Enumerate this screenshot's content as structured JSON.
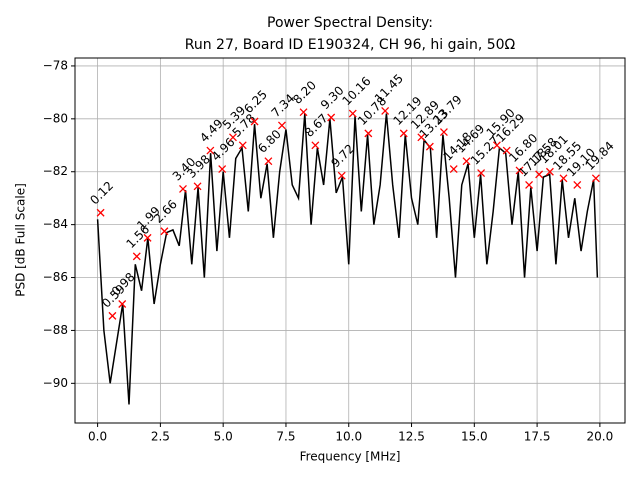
{
  "chart_data": {
    "type": "line",
    "title": "Power Spectral Density:",
    "subtitle": "Run 27, Board ID E190324, CH 96, hi gain, 50Ω",
    "x_label": "Frequency [MHz]",
    "y_label": "PSD [dB Full Scale]",
    "xlim": [
      -0.9,
      21.0
    ],
    "ylim": [
      -91.5,
      -77.7
    ],
    "grid": true,
    "xticks": [
      {
        "value": 0,
        "label": "0.0"
      },
      {
        "value": 2.5,
        "label": "2.5"
      },
      {
        "value": 5,
        "label": "5.0"
      },
      {
        "value": 7.5,
        "label": "7.5"
      },
      {
        "value": 10,
        "label": "10.0"
      },
      {
        "value": 12.5,
        "label": "12.5"
      },
      {
        "value": 15,
        "label": "15.0"
      },
      {
        "value": 17.5,
        "label": "17.5"
      },
      {
        "value": 20,
        "label": "20.0"
      }
    ],
    "yticks": [
      {
        "value": -90,
        "label": "−90"
      },
      {
        "value": -88,
        "label": "−88"
      },
      {
        "value": -86,
        "label": "−86"
      },
      {
        "value": -84,
        "label": "−84"
      },
      {
        "value": -82,
        "label": "−82"
      },
      {
        "value": -80,
        "label": "−80"
      },
      {
        "value": -78,
        "label": "−78"
      }
    ],
    "series": [
      {
        "color": "#000000",
        "x": [
          0,
          0.25,
          0.5,
          0.75,
          1,
          1.25,
          1.5,
          1.75,
          2,
          2.25,
          2.5,
          2.75,
          3,
          3.25,
          3.5,
          3.75,
          4,
          4.25,
          4.5,
          4.75,
          5,
          5.25,
          5.5,
          5.75,
          6,
          6.25,
          6.5,
          6.75,
          7,
          7.25,
          7.5,
          7.75,
          8,
          8.25,
          8.5,
          8.75,
          9,
          9.25,
          9.5,
          9.75,
          10,
          10.25,
          10.5,
          10.75,
          11,
          11.25,
          11.5,
          11.75,
          12,
          12.25,
          12.5,
          12.75,
          13,
          13.25,
          13.5,
          13.75,
          14,
          14.25,
          14.5,
          14.75,
          15,
          15.25,
          15.5,
          15.75,
          16,
          16.25,
          16.5,
          16.75,
          17,
          17.25,
          17.5,
          17.75,
          18,
          18.25,
          18.5,
          18.75,
          19,
          19.25,
          19.5,
          19.75,
          19.9
        ],
        "values": [
          -83.8,
          -88.0,
          -90.0,
          -88.5,
          -87.0,
          -90.8,
          -85.5,
          -86.5,
          -84.5,
          -87.0,
          -85.5,
          -84.3,
          -84.2,
          -84.8,
          -82.7,
          -85.5,
          -82.6,
          -86.0,
          -81.3,
          -85.0,
          -82.0,
          -84.5,
          -81.5,
          -81.1,
          -83.5,
          -80.2,
          -83.0,
          -81.7,
          -84.5,
          -82.0,
          -80.4,
          -82.5,
          -83.0,
          -79.8,
          -84.0,
          -81.1,
          -82.5,
          -80.0,
          -82.8,
          -82.2,
          -85.5,
          -79.9,
          -83.5,
          -80.6,
          -84.0,
          -82.5,
          -79.8,
          -82.5,
          -84.5,
          -80.6,
          -83.0,
          -84.0,
          -80.8,
          -81.1,
          -84.5,
          -80.6,
          -83.0,
          -86.0,
          -82.5,
          -81.7,
          -84.5,
          -82.1,
          -85.5,
          -83.5,
          -81.1,
          -81.3,
          -84.0,
          -82.0,
          -86.0,
          -82.6,
          -85.0,
          -82.2,
          -82.1,
          -85.5,
          -82.3,
          -84.5,
          -83.0,
          -85.0,
          -83.5,
          -82.3,
          -86.0
        ]
      }
    ],
    "peaks": {
      "color": "#ff0000",
      "x": [
        0.12,
        0.59,
        0.98,
        1.56,
        1.99,
        2.66,
        3.4,
        3.98,
        4.49,
        4.96,
        5.39,
        5.78,
        6.25,
        6.8,
        7.34,
        8.2,
        8.67,
        9.3,
        9.72,
        10.16,
        10.78,
        11.45,
        12.19,
        12.89,
        13.23,
        13.79,
        14.18,
        14.69,
        15.27,
        15.9,
        16.29,
        16.8,
        17.18,
        17.58,
        18.01,
        18.55,
        19.1,
        19.84
      ],
      "values": [
        -83.55,
        -87.45,
        -87.0,
        -85.2,
        -84.5,
        -84.25,
        -82.65,
        -82.55,
        -81.2,
        -81.9,
        -80.7,
        -81.0,
        -80.1,
        -81.6,
        -80.25,
        -79.75,
        -81.0,
        -79.95,
        -82.15,
        -79.8,
        -80.55,
        -79.7,
        -80.55,
        -80.7,
        -81.05,
        -80.5,
        -81.9,
        -81.6,
        -82.05,
        -81.0,
        -81.2,
        -81.95,
        -82.5,
        -82.1,
        -82.0,
        -82.25,
        -82.5,
        -82.25
      ],
      "labels": [
        "0.12",
        "0.59",
        "0.98",
        "1.56",
        "1.99",
        "2.66",
        "3.40",
        "3.98",
        "4.49",
        "4.96",
        "5.39",
        "5.78",
        "6.25",
        "6.80",
        "7.34",
        "8.20",
        "8.67",
        "9.30",
        "9.72",
        "10.16",
        "10.78",
        "11.45",
        "12.19",
        "12.89",
        "13.23",
        "13.79",
        "14.18",
        "14.69",
        "15.27",
        "15.90",
        "16.29",
        "16.80",
        "17.18",
        "17.58",
        "18.01",
        "18.55",
        "19.10",
        "19.84"
      ]
    }
  }
}
